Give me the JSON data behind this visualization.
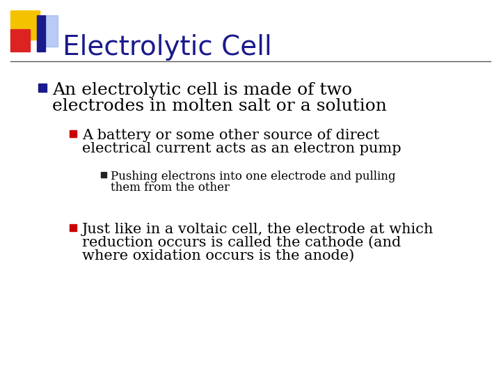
{
  "background_color": "#ffffff",
  "title": "Electrolytic Cell",
  "title_color": "#1a1a8c",
  "title_fontsize": 28,
  "separator_color": "#555555",
  "bullet1_color": "#1a1a8c",
  "bullet2_color": "#cc0000",
  "bullet3_color": "#222222",
  "bullet1_text_line1": "An electrolytic cell is made of two",
  "bullet1_text_line2": "electrodes in molten salt or a solution",
  "bullet2_text_line1": "A battery or some other source of direct",
  "bullet2_text_line2": "electrical current acts as an electron pump",
  "bullet3_text_line1": "Pushing electrons into one electrode and pulling",
  "bullet3_text_line2": "them from the other",
  "bullet4_text_line1": "Just like in a voltaic cell, the electrode at which",
  "bullet4_text_line2": "reduction occurs is called the cathode (and",
  "bullet4_text_line3": "where oxidation occurs is the anode)",
  "bullet1_fontsize": 18,
  "bullet2_fontsize": 15,
  "bullet3_fontsize": 12,
  "bullet4_fontsize": 15,
  "yellow_color": "#f5c200",
  "red_color": "#dd2222",
  "blue_color": "#1a1a8c",
  "lightblue_color": "#7799ee"
}
